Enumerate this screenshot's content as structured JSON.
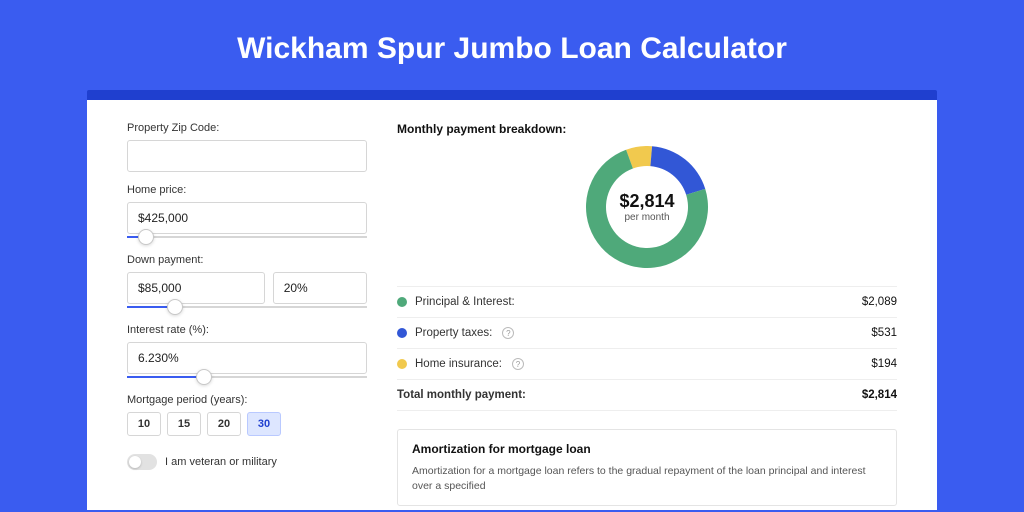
{
  "page": {
    "title": "Wickham Spur Jumbo Loan Calculator",
    "bg_color": "#3a5cf0",
    "card_border_top": "#1f3fcf"
  },
  "form": {
    "zip": {
      "label": "Property Zip Code:",
      "value": ""
    },
    "home_price": {
      "label": "Home price:",
      "value": "$425,000",
      "slider_pct": 8
    },
    "down_payment": {
      "label": "Down payment:",
      "amount": "$85,000",
      "percent": "20%",
      "slider_pct": 20
    },
    "interest_rate": {
      "label": "Interest rate (%):",
      "value": "6.230%",
      "slider_pct": 32
    },
    "period": {
      "label": "Mortgage period (years):",
      "options": [
        "10",
        "15",
        "20",
        "30"
      ],
      "active": "30"
    },
    "veteran": {
      "label": "I am veteran or military",
      "on": false
    }
  },
  "breakdown": {
    "title": "Monthly payment breakdown:",
    "center_amount": "$2,814",
    "center_sub": "per month",
    "donut": {
      "size": 122,
      "thickness": 20,
      "slices": [
        {
          "key": "pi",
          "color": "#4fa97a",
          "value": 2089
        },
        {
          "key": "tax",
          "color": "#3257d6",
          "value": 531
        },
        {
          "key": "ins",
          "color": "#f1c94e",
          "value": 194
        }
      ]
    },
    "items": [
      {
        "key": "pi",
        "label": "Principal & Interest:",
        "value": "$2,089",
        "info": false,
        "color": "#4fa97a"
      },
      {
        "key": "tax",
        "label": "Property taxes:",
        "value": "$531",
        "info": true,
        "color": "#3257d6"
      },
      {
        "key": "ins",
        "label": "Home insurance:",
        "value": "$194",
        "info": true,
        "color": "#f1c94e"
      }
    ],
    "total": {
      "label": "Total monthly payment:",
      "value": "$2,814"
    }
  },
  "amortization": {
    "title": "Amortization for mortgage loan",
    "body": "Amortization for a mortgage loan refers to the gradual repayment of the loan principal and interest over a specified"
  }
}
